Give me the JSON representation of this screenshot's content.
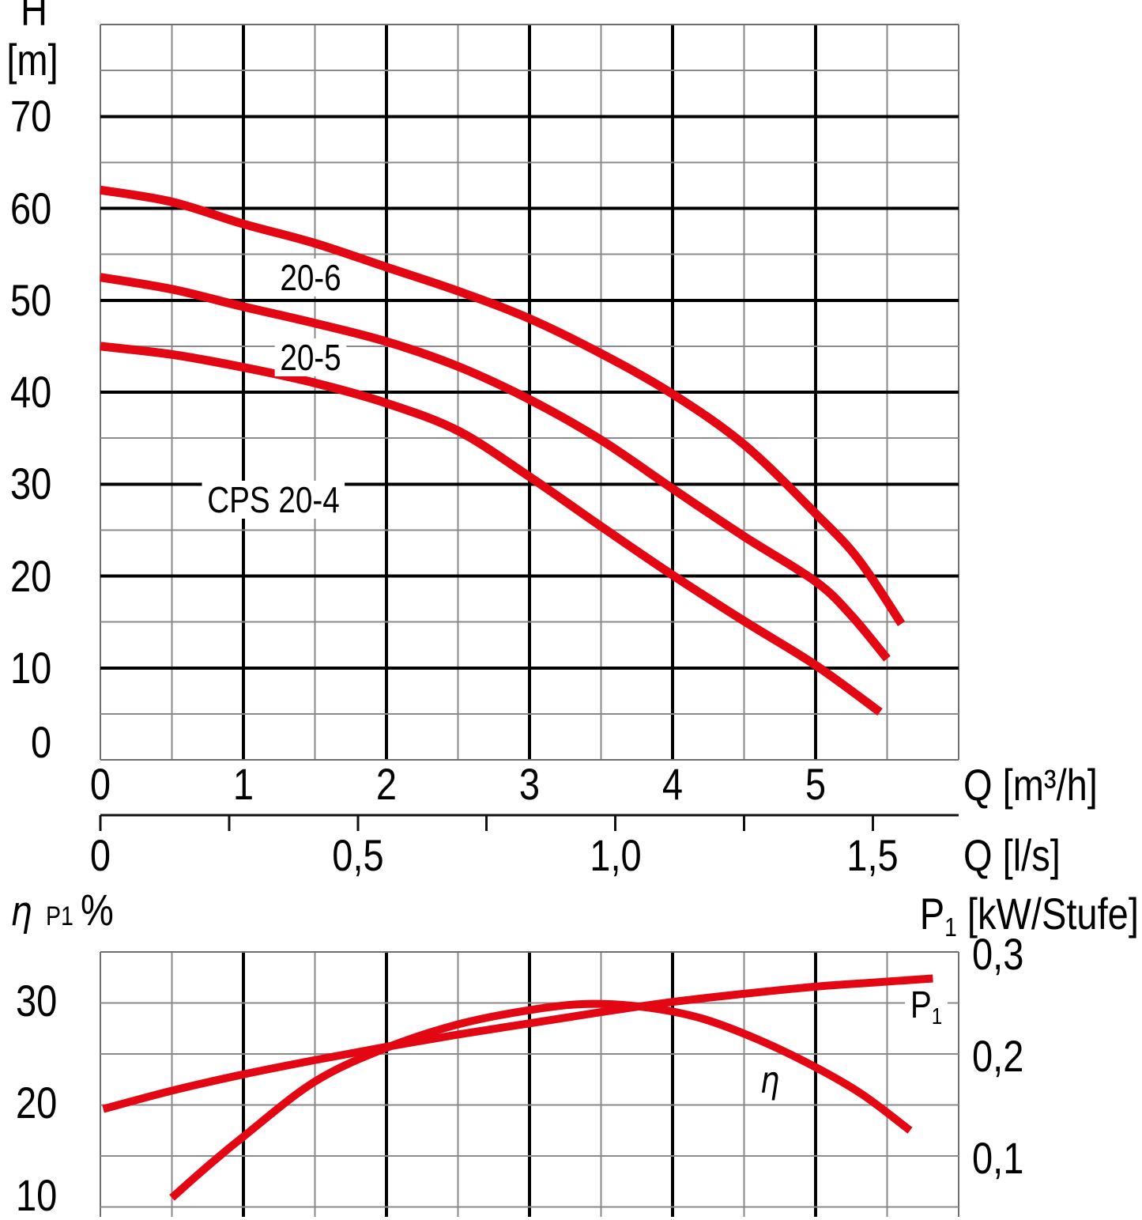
{
  "colors": {
    "curve": "#e30613",
    "major_grid": "#000000",
    "minor_grid": "#8a8a8a",
    "border_grid": "#6e6e6e",
    "axis_line": "#111111",
    "text": "#000000"
  },
  "chart_data": [
    {
      "name": "head-flow-chart",
      "type": "line",
      "y_axis_title_line1": "H",
      "y_axis_title_line2": "[m]",
      "x_axis_title": "Q [m³/h]",
      "x2_axis_title": "Q [l/s]",
      "y_ticks": [
        0,
        10,
        20,
        30,
        40,
        50,
        60,
        70
      ],
      "y_range": [
        0,
        80
      ],
      "y_minor_step": 5,
      "x_ticks": [
        0,
        1,
        2,
        3,
        4,
        5
      ],
      "x_range": [
        0,
        6
      ],
      "x_minor_step": 0.5,
      "x2_to_x_factor": 3.6,
      "x2_ticks": [
        {
          "value": 0,
          "label": "0"
        },
        {
          "value": 0.25,
          "label": ""
        },
        {
          "value": 0.5,
          "label": "0,5"
        },
        {
          "value": 0.75,
          "label": ""
        },
        {
          "value": 1.0,
          "label": "1,0"
        },
        {
          "value": 1.25,
          "label": ""
        },
        {
          "value": 1.5,
          "label": "1,5"
        }
      ],
      "grid": "on",
      "series": [
        {
          "name": "20-6",
          "label": "20-6",
          "label_anchor": {
            "q": 1.47,
            "v": 52.5
          },
          "points": [
            [
              0,
              62
            ],
            [
              0.5,
              60.7
            ],
            [
              1,
              58.3
            ],
            [
              1.5,
              56.2
            ],
            [
              2,
              53.6
            ],
            [
              2.5,
              51
            ],
            [
              3,
              48
            ],
            [
              3.5,
              44.2
            ],
            [
              4,
              39.8
            ],
            [
              4.5,
              34.3
            ],
            [
              5,
              26.8
            ],
            [
              5.3,
              21.8
            ],
            [
              5.6,
              14.8
            ]
          ]
        },
        {
          "name": "20-5",
          "label": "20-5",
          "label_anchor": {
            "q": 1.47,
            "v": 43.8
          },
          "points": [
            [
              0,
              52.5
            ],
            [
              0.5,
              51.2
            ],
            [
              1,
              49.3
            ],
            [
              1.5,
              47.5
            ],
            [
              2,
              45.5
            ],
            [
              2.5,
              42.8
            ],
            [
              3,
              39.2
            ],
            [
              3.5,
              34.8
            ],
            [
              4,
              29.5
            ],
            [
              4.5,
              24.3
            ],
            [
              5,
              19.4
            ],
            [
              5.25,
              15.7
            ],
            [
              5.5,
              11
            ]
          ]
        },
        {
          "name": "CPS 20-4",
          "label": "CPS 20-4",
          "label_anchor": {
            "q": 1.21,
            "v": 28.3
          },
          "points": [
            [
              0,
              45
            ],
            [
              0.5,
              44.1
            ],
            [
              1,
              42.7
            ],
            [
              1.5,
              41
            ],
            [
              2,
              38.8
            ],
            [
              2.5,
              35.8
            ],
            [
              3,
              30.8
            ],
            [
              3.5,
              25.4
            ],
            [
              4,
              20.1
            ],
            [
              4.5,
              15.1
            ],
            [
              5,
              10.3
            ],
            [
              5.45,
              5.2
            ]
          ]
        }
      ]
    },
    {
      "name": "efficiency-power-chart",
      "type": "line",
      "left_axis_title": {
        "eta": "η",
        "p1": "P1",
        "percent": "%"
      },
      "right_axis_title": {
        "p": "P",
        "sub": "1",
        "rest": " [kW/Stufe]"
      },
      "left_ticks": [
        30,
        20,
        10
      ],
      "left_range_top": 35,
      "left_minor_step": 5,
      "right_ticks": [
        {
          "value": 0.3,
          "label": "0,3"
        },
        {
          "value": 0.2,
          "label": "0,2"
        },
        {
          "value": 0.1,
          "label": "0,1"
        }
      ],
      "series": [
        {
          "name": "P1",
          "axis": "right",
          "label": {
            "p": "P",
            "sub": "1"
          },
          "label_anchor": {
            "q": 5.78,
            "v": 0.247
          },
          "points": [
            [
              0.02,
              0.146
            ],
            [
              0.5,
              0.164
            ],
            [
              1,
              0.18
            ],
            [
              1.5,
              0.194
            ],
            [
              2,
              0.207
            ],
            [
              2.5,
              0.219
            ],
            [
              3,
              0.23
            ],
            [
              3.5,
              0.241
            ],
            [
              4,
              0.251
            ],
            [
              4.5,
              0.259
            ],
            [
              5,
              0.266
            ],
            [
              5.4,
              0.27
            ],
            [
              5.82,
              0.274
            ]
          ]
        },
        {
          "name": "eta",
          "axis": "left",
          "label": {
            "text": "η"
          },
          "label_anchor": {
            "q": 4.68,
            "v": 22.4
          },
          "points": [
            [
              0.5,
              10.9
            ],
            [
              0.75,
              14
            ],
            [
              1,
              16.9
            ],
            [
              1.5,
              22.3
            ],
            [
              2,
              25.6
            ],
            [
              2.5,
              27.9
            ],
            [
              3,
              29.3
            ],
            [
              3.4,
              29.9
            ],
            [
              3.8,
              29.6
            ],
            [
              4.2,
              28.5
            ],
            [
              4.6,
              26.4
            ],
            [
              5,
              23.7
            ],
            [
              5.33,
              21
            ],
            [
              5.66,
              17.5
            ]
          ]
        }
      ]
    }
  ]
}
